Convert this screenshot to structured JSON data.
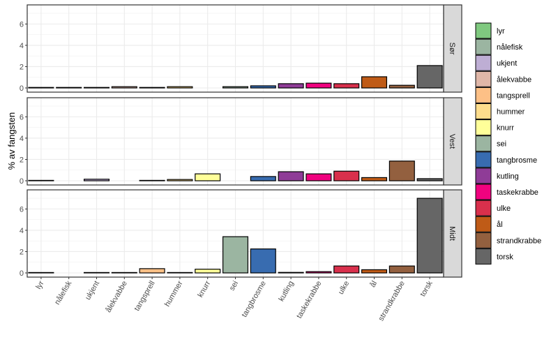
{
  "chart_data": {
    "type": "bar",
    "layout": "facet-grid rows",
    "ylabel": "% av fangsten",
    "xlabel": "",
    "ylim": [
      0,
      7.4
    ],
    "yticks": [
      0,
      2,
      4,
      6
    ],
    "grid": true,
    "legend_position": "right",
    "categories": [
      "lyr",
      "nålefisk",
      "ukjent",
      "ålekvabbe",
      "tangsprell",
      "hummer",
      "knurr",
      "sei",
      "tangbrosme",
      "kutling",
      "taskekrabbe",
      "ulke",
      "ål",
      "strandkrabbe",
      "torsk"
    ],
    "colors": {
      "lyr": "#7fc97f",
      "nålefisk": "#9bb5a1",
      "ukjent": "#beaed4",
      "ålekvabbe": "#e0b7a8",
      "tangsprell": "#fdc086",
      "hummer": "#fedd8c",
      "knurr": "#ffff99",
      "sei": "#9bb5a1",
      "tangbrosme": "#386cb0",
      "kutling": "#8f3c97",
      "taskekrabbe": "#f0027f",
      "ulke": "#d9304c",
      "ål": "#bf5b17",
      "strandkrabbe": "#93603f",
      "torsk": "#666666"
    },
    "legend": [
      "lyr",
      "nålefisk",
      "ukjent",
      "ålekvabbe",
      "tangsprell",
      "hummer",
      "knurr",
      "sei",
      "tangbrosme",
      "kutling",
      "taskekrabbe",
      "ulke",
      "ål",
      "strandkrabbe",
      "torsk"
    ],
    "panels": [
      {
        "label": "Sør",
        "values": [
          0.05,
          0.05,
          0.05,
          0.12,
          0.05,
          0.12,
          null,
          0.12,
          0.2,
          0.4,
          0.45,
          0.4,
          1.05,
          0.25,
          2.1
        ]
      },
      {
        "label": "Vest",
        "values": [
          0.02,
          null,
          0.15,
          null,
          0.02,
          0.12,
          0.65,
          null,
          0.4,
          0.85,
          0.65,
          0.9,
          0.3,
          1.85,
          0.2
        ]
      },
      {
        "label": "Midt",
        "values": [
          0.02,
          null,
          0.02,
          0.02,
          0.4,
          0.02,
          0.35,
          3.4,
          2.25,
          0.05,
          0.12,
          0.65,
          0.3,
          0.65,
          7.0
        ]
      }
    ]
  }
}
